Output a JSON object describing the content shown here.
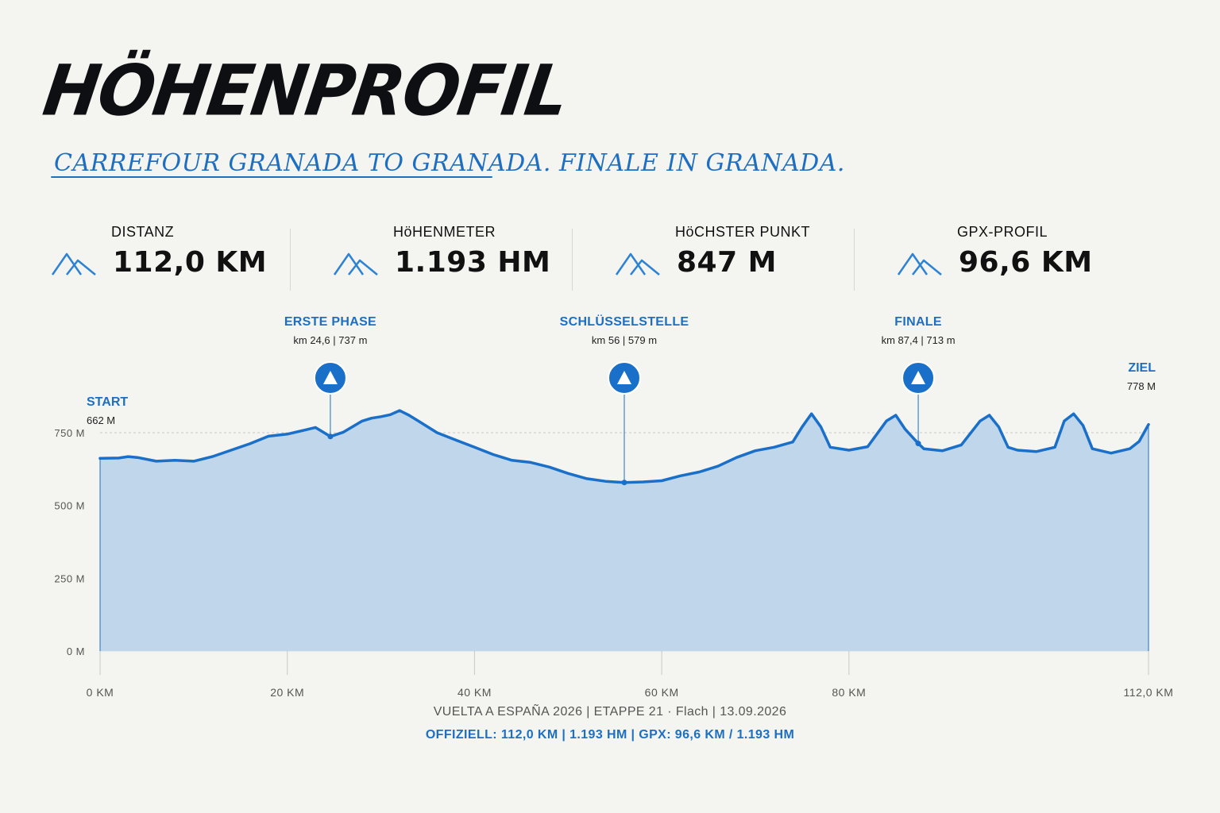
{
  "header": {
    "title": "HÖHENPROFIL",
    "subtitle": "CARREFOUR GRANADA TO GRANADA. FINALE IN GRANADA."
  },
  "stats": [
    {
      "label": "DISTANZ",
      "value": "112,0 KM",
      "icon": "mountain-icon"
    },
    {
      "label": "HöHENMETER",
      "value": "1.193 HM",
      "icon": "mountain-icon"
    },
    {
      "label": "HöCHSTER PUNKT",
      "value": "847 M",
      "icon": "mountain-icon"
    },
    {
      "label": "GPX-PROFIL",
      "value": "96,6 KM",
      "icon": "mountain-icon"
    }
  ],
  "colors": {
    "accent": "#1e6fc2",
    "line": "#1a6fc9",
    "fill": "#c0d6ea",
    "background": "#f4f4f0"
  },
  "chart_data": {
    "type": "area",
    "xlabel": "",
    "ylabel": "",
    "xlim": [
      0,
      112
    ],
    "ylim": [
      0,
      850
    ],
    "yticks": [
      0,
      250,
      500,
      750
    ],
    "ytick_labels": [
      "0 M",
      "250 M",
      "500 M",
      "750 M"
    ],
    "xticks": [
      0,
      20,
      40,
      60,
      80,
      112
    ],
    "xtick_labels": [
      "0 KM",
      "20 KM",
      "40 KM",
      "60 KM",
      "80 KM",
      "112,0 KM"
    ],
    "grid": true,
    "series": [
      {
        "x": [
          0,
          2,
          3,
          4,
          6,
          8,
          10,
          12,
          14,
          16,
          18,
          20,
          22,
          23,
          24.6,
          26,
          28,
          29,
          30,
          31,
          32,
          33,
          34,
          36,
          38,
          40,
          42,
          44,
          46,
          48,
          50,
          52,
          54,
          56,
          58,
          60,
          62,
          64,
          66,
          68,
          70,
          72,
          74,
          75,
          76,
          77,
          78,
          80,
          82,
          84,
          85,
          86,
          87.4,
          88,
          90,
          92,
          94,
          95,
          96,
          97,
          98,
          100,
          102,
          103,
          104,
          105,
          106,
          108,
          110,
          111,
          112
        ],
        "y": [
          662,
          663,
          668,
          665,
          652,
          655,
          652,
          668,
          690,
          712,
          738,
          745,
          760,
          768,
          737,
          752,
          790,
          800,
          805,
          812,
          826,
          810,
          790,
          750,
          725,
          700,
          675,
          655,
          648,
          632,
          610,
          592,
          583,
          579,
          581,
          585,
          602,
          615,
          635,
          665,
          688,
          700,
          718,
          770,
          815,
          770,
          700,
          690,
          702,
          790,
          810,
          762,
          713,
          695,
          688,
          708,
          790,
          810,
          770,
          700,
          690,
          685,
          700,
          790,
          815,
          775,
          695,
          680,
          695,
          720,
          778
        ]
      }
    ],
    "start": {
      "label": "START",
      "value": "662 M"
    },
    "finish": {
      "label": "ZIEL",
      "value": "778 M"
    },
    "markers": [
      {
        "km": 24.6,
        "elevation": 737,
        "title": "ERSTE PHASE",
        "detail": "km 24,6 | 737 m"
      },
      {
        "km": 56,
        "elevation": 579,
        "title": "SCHLÜSSELSTELLE",
        "detail": "km 56 | 579 m"
      },
      {
        "km": 87.4,
        "elevation": 713,
        "title": "FINALE",
        "detail": "km 87,4 | 713 m"
      }
    ]
  },
  "footer": {
    "info": "VUELTA A ESPAÑA 2026 | ETAPPE 21 · Flach | 13.09.2026",
    "official": "OFFIZIELL: 112,0 KM | 1.193 HM | GPX: 96,6 KM / 1.193 HM"
  }
}
